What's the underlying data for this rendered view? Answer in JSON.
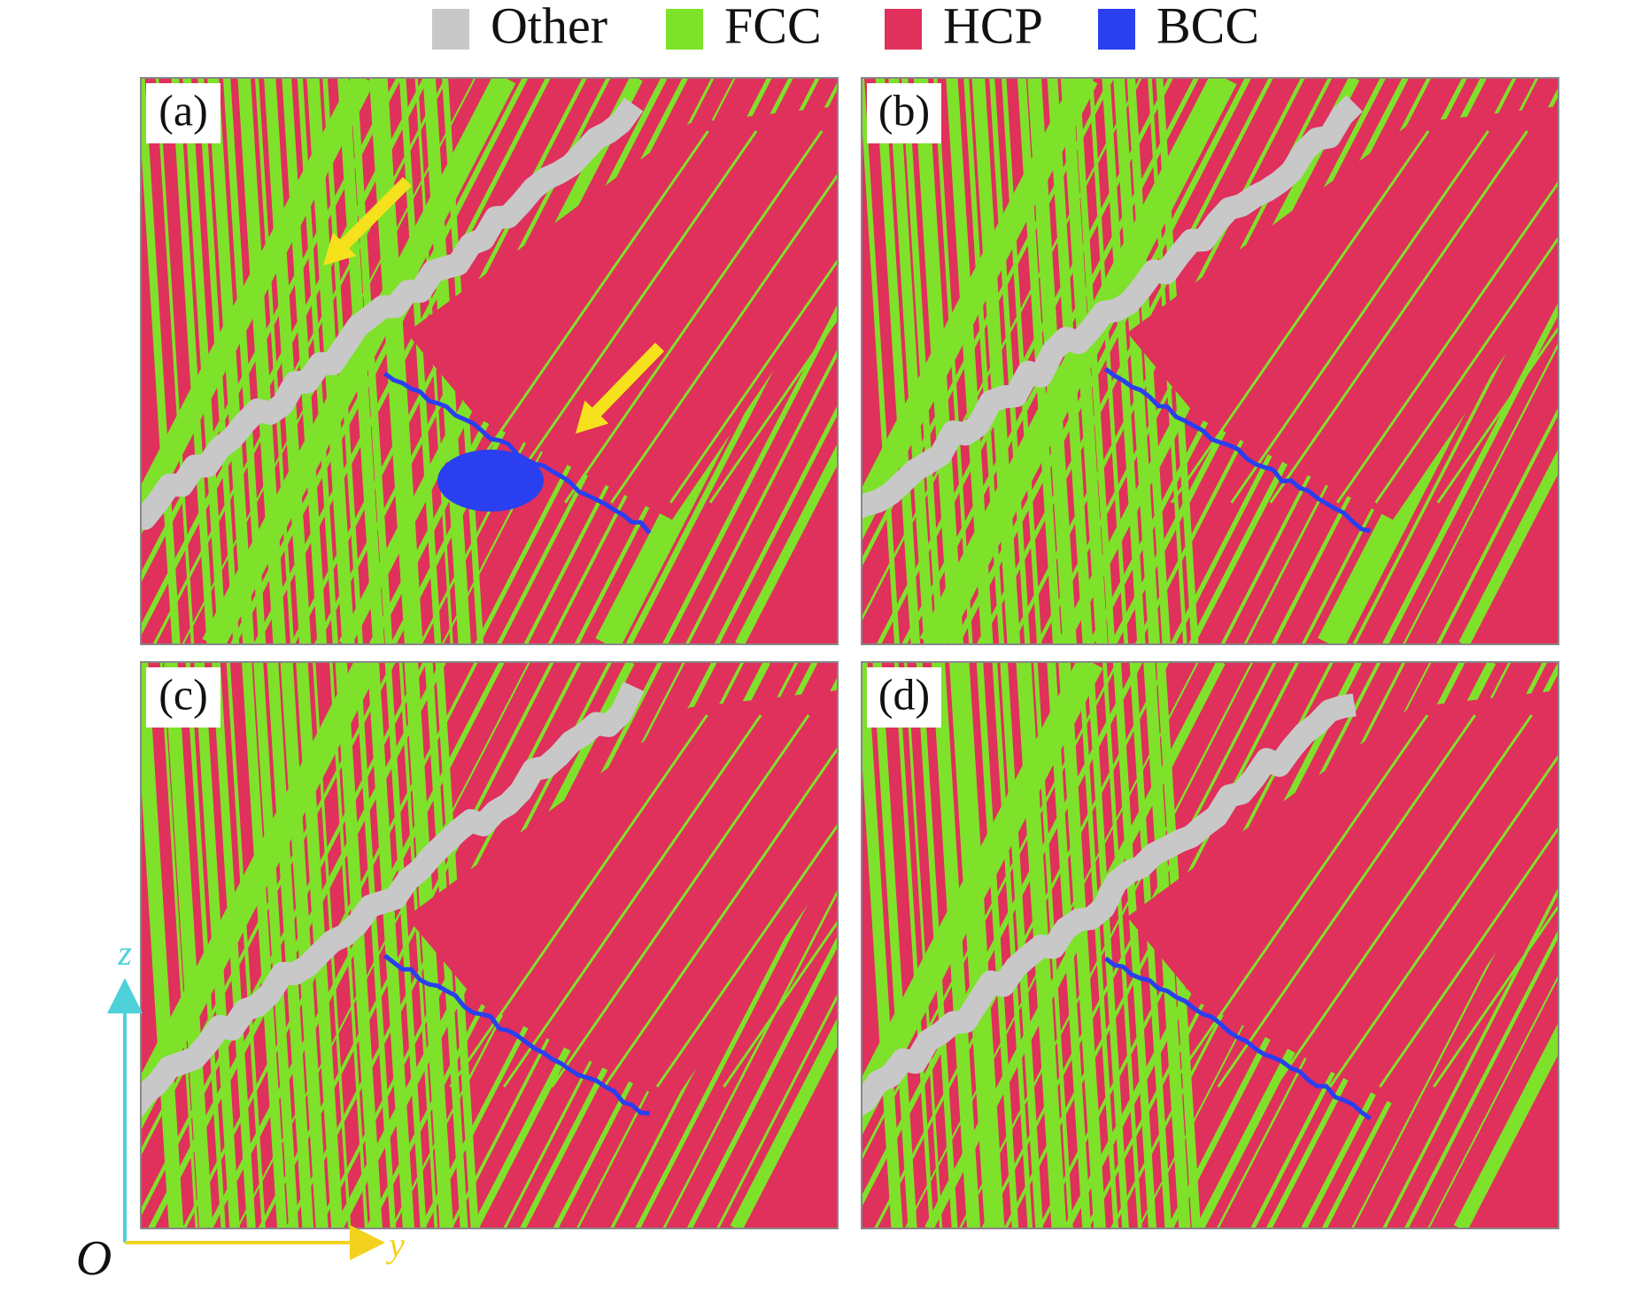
{
  "legend": {
    "items": [
      {
        "label": "Other",
        "color": "#c8c8c8"
      },
      {
        "label": "FCC",
        "color": "#7ee22a"
      },
      {
        "label": "HCP",
        "color": "#e0305c"
      },
      {
        "label": "BCC",
        "color": "#2a3ff0"
      }
    ]
  },
  "panels": [
    {
      "label": "(a)"
    },
    {
      "label": "(b)"
    },
    {
      "label": "(c)"
    },
    {
      "label": "(d)"
    }
  ],
  "axes": {
    "vertical": "z",
    "horizontal": "y",
    "origin": "O"
  }
}
